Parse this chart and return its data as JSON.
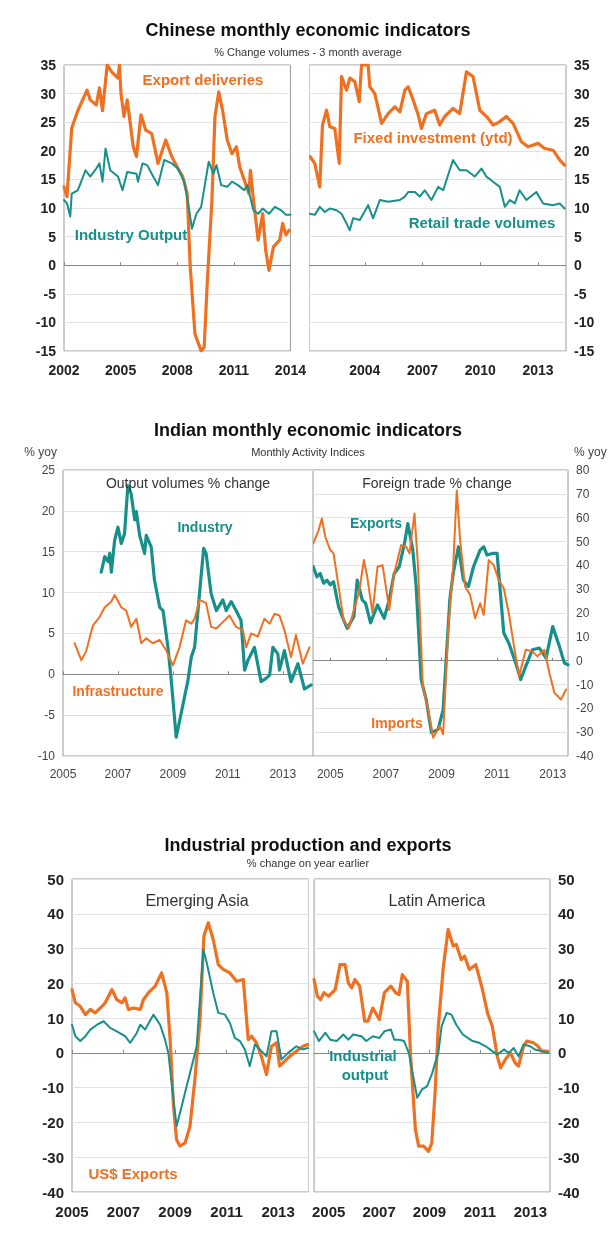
{
  "chart_data": [
    {
      "type": "line",
      "title": "Chinese monthly economic indicators",
      "subtitle": "% Change volumes - 3 month average",
      "xlim": [
        2002,
        2014
      ],
      "xticks": [
        2002,
        2005,
        2008,
        2011,
        2014
      ],
      "ylim": [
        -15,
        35
      ],
      "yticks": [
        -15,
        -10,
        -5,
        0,
        5,
        10,
        15,
        20,
        25,
        30,
        35
      ],
      "grid": "y",
      "series": [
        {
          "name": "Export deliveries",
          "color": "#f07021",
          "x": [
            2002.0,
            2002.16,
            2002.41,
            2002.73,
            2003.22,
            2003.39,
            2003.71,
            2003.88,
            2004.04,
            2004.29,
            2004.53,
            2004.86,
            2004.94,
            2005.02,
            2005.18,
            2005.35,
            2005.67,
            2005.84,
            2006.08,
            2006.33,
            2006.65,
            2006.98,
            2007.39,
            2007.71,
            2008.04,
            2008.29,
            2008.53,
            2008.69,
            2008.94,
            2009.27,
            2009.43,
            2009.59,
            2009.84,
            2010.0,
            2010.2,
            2010.41,
            2010.65,
            2010.9,
            2011.14,
            2011.31,
            2011.55,
            2011.8,
            2011.88,
            2012.04,
            2012.29,
            2012.53,
            2012.69,
            2012.86,
            2013.1,
            2013.43,
            2013.59,
            2013.76,
            2013.92
          ],
          "values": [
            13.7,
            12,
            24,
            27,
            30.6,
            28.9,
            28,
            31,
            27,
            35,
            33.8,
            32.7,
            35,
            30,
            26,
            28.9,
            20.7,
            19,
            26.3,
            23.6,
            23,
            17.8,
            21.9,
            19,
            16.9,
            15.5,
            12.5,
            -0.3,
            -12,
            -15,
            -14.3,
            -3.2,
            11.4,
            26,
            30.3,
            27,
            21.9,
            19.5,
            20.7,
            17.2,
            14.9,
            12.5,
            16.6,
            11.4,
            4.4,
            9,
            2.6,
            -0.9,
            3.2,
            4.4,
            7.3,
            5.3,
            6.1
          ]
        },
        {
          "name": "Industry Output",
          "color": "#17908c",
          "x": [
            2002.0,
            2002.16,
            2002.33,
            2002.41,
            2002.73,
            2003.14,
            2003.39,
            2003.71,
            2003.88,
            2004.04,
            2004.2,
            2004.45,
            2004.86,
            2005.1,
            2005.35,
            2005.84,
            2005.92,
            2006.16,
            2006.41,
            2006.65,
            2006.98,
            2007.31,
            2007.71,
            2008.04,
            2008.37,
            2008.61,
            2008.78,
            2009.02,
            2009.27,
            2009.67,
            2009.92,
            2010.08,
            2010.33,
            2010.65,
            2010.9,
            2011.22,
            2011.55,
            2011.71,
            2012.04,
            2012.29,
            2012.53,
            2012.86,
            2013.18,
            2013.51,
            2013.76,
            2014.0
          ],
          "values": [
            11.4,
            10.8,
            8.5,
            12.5,
            13.1,
            16.6,
            15.5,
            16.9,
            17.8,
            14.6,
            20.4,
            16.6,
            15.5,
            13.1,
            16.3,
            16,
            14.6,
            17.8,
            17.5,
            16,
            14,
            18.4,
            17.8,
            16.9,
            14.6,
            10.2,
            6.4,
            9,
            10.2,
            18.1,
            16,
            17.5,
            14,
            13.7,
            14.6,
            14,
            13.1,
            14,
            9.6,
            9,
            9.9,
            9,
            10.2,
            9.6,
            8.8,
            8.8
          ]
        }
      ]
    },
    {
      "type": "line",
      "xlim": [
        2001.1,
        2014.45
      ],
      "xticks": [
        2004,
        2007,
        2010,
        2013
      ],
      "ylim": [
        -15,
        35
      ],
      "yticks": [
        -15,
        -10,
        -5,
        0,
        5,
        10,
        15,
        20,
        25,
        30,
        35
      ],
      "grid": "y",
      "series": [
        {
          "name": "Fixed investment (ytd)",
          "color": "#f07021",
          "x": [
            2001.15,
            2001.4,
            2001.66,
            2001.8,
            2002.01,
            2002.18,
            2002.44,
            2002.67,
            2002.79,
            2003.05,
            2003.22,
            2003.48,
            2003.71,
            2003.83,
            2004.17,
            2004.26,
            2004.52,
            2004.87,
            2005.21,
            2005.56,
            2005.82,
            2006.08,
            2006.25,
            2006.51,
            2006.77,
            2006.94,
            2007.2,
            2007.63,
            2007.89,
            2008.15,
            2008.58,
            2008.93,
            2009.28,
            2009.62,
            2009.97,
            2010.4,
            2010.66,
            2011.01,
            2011.35,
            2011.7,
            2012.13,
            2012.48,
            2013.0,
            2013.34,
            2013.78,
            2014.12,
            2014.38
          ],
          "values": [
            19,
            17.8,
            13.7,
            24.5,
            27.1,
            24.2,
            23.9,
            17.8,
            33,
            30.6,
            32.7,
            32.1,
            28.6,
            35,
            35,
            31.2,
            30,
            24.8,
            26.5,
            27.7,
            26.8,
            30.6,
            31.2,
            28.9,
            26.3,
            23.9,
            26.5,
            27.1,
            24.5,
            26,
            27.4,
            26.5,
            33.8,
            33,
            27.1,
            25.7,
            24.5,
            25.1,
            26,
            24.8,
            21.6,
            20.7,
            21.3,
            20.4,
            20.1,
            18.4,
            17.5
          ]
        },
        {
          "name": "Retail trade volumes",
          "color": "#17908c",
          "x": [
            2001.15,
            2001.4,
            2001.66,
            2001.92,
            2002.18,
            2002.53,
            2002.79,
            2003.05,
            2003.22,
            2003.39,
            2003.74,
            2004.17,
            2004.43,
            2004.78,
            2005.21,
            2005.82,
            2006.08,
            2006.25,
            2006.6,
            2006.85,
            2007.11,
            2007.46,
            2007.81,
            2008.07,
            2008.58,
            2008.93,
            2009.28,
            2009.71,
            2010.06,
            2010.31,
            2010.66,
            2011.01,
            2011.27,
            2011.53,
            2011.79,
            2012.04,
            2012.39,
            2012.91,
            2013.26,
            2013.78,
            2014.12,
            2014.38
          ],
          "values": [
            9,
            8.8,
            10.2,
            9.3,
            9.9,
            9.6,
            9,
            7.3,
            6.1,
            8.2,
            7.9,
            10.5,
            8.2,
            11.4,
            11.1,
            11.4,
            12,
            12.8,
            12.8,
            12,
            13.1,
            11.4,
            13.7,
            13.1,
            18.4,
            16.6,
            16.6,
            15.5,
            16.9,
            15.5,
            14.6,
            13.7,
            10.2,
            11.4,
            10.8,
            13.1,
            11.4,
            12.8,
            10.8,
            10.5,
            10.8,
            9.9
          ]
        }
      ]
    },
    {
      "type": "line",
      "title": "Indian monthly economic indicators",
      "subtitle": "Monthly Activity Indices",
      "ylabel": "% yoy",
      "annotations": [
        "Output volumes % change"
      ],
      "xlim": [
        2005,
        2014.1
      ],
      "xticks": [
        2005,
        2007,
        2009,
        2011,
        2013
      ],
      "ylim": [
        -10,
        25
      ],
      "yticks": [
        -10,
        -5,
        0,
        5,
        10,
        15,
        20,
        25
      ],
      "grid": "y",
      "series": [
        {
          "name": "Industry",
          "color": "#17908c",
          "x": [
            2006.39,
            2006.52,
            2006.64,
            2006.7,
            2006.76,
            2006.88,
            2007.0,
            2007.12,
            2007.24,
            2007.36,
            2007.48,
            2007.61,
            2007.67,
            2007.79,
            2007.97,
            2008.03,
            2008.21,
            2008.33,
            2008.52,
            2008.64,
            2008.82,
            2008.94,
            2009.12,
            2009.3,
            2009.55,
            2009.67,
            2009.79,
            2009.97,
            2010.12,
            2010.21,
            2010.39,
            2010.58,
            2010.82,
            2010.94,
            2011.12,
            2011.3,
            2011.48,
            2011.61,
            2011.73,
            2011.97,
            2012.21,
            2012.39,
            2012.52,
            2012.64,
            2012.82,
            2012.88,
            2013.06,
            2013.3,
            2013.55,
            2013.79,
            2014.03
          ],
          "values": [
            12.5,
            14.4,
            13.8,
            14.8,
            12.5,
            16.4,
            18,
            16,
            17.2,
            23.1,
            22.1,
            18.9,
            19.9,
            17,
            14.8,
            17,
            15.6,
            11.5,
            8.2,
            7.8,
            3.3,
            -0.7,
            -7.7,
            -4.8,
            -0.7,
            2.1,
            3.3,
            9.9,
            15.4,
            14.8,
            9.9,
            7.8,
            9.1,
            7.8,
            8.9,
            7.8,
            6.6,
            0.5,
            1.7,
            3.3,
            -0.9,
            -0.5,
            -0.1,
            3.3,
            2.5,
            0.5,
            2.9,
            -0.9,
            1.3,
            -1.8,
            -1.3
          ]
        },
        {
          "name": "Infrastructure",
          "color": "#f07021",
          "x": [
            2005.42,
            2005.67,
            2005.85,
            2006.09,
            2006.33,
            2006.52,
            2006.76,
            2006.88,
            2007.12,
            2007.3,
            2007.48,
            2007.67,
            2007.85,
            2008.03,
            2008.27,
            2008.52,
            2008.76,
            2009.0,
            2009.24,
            2009.48,
            2009.67,
            2009.79,
            2009.97,
            2010.21,
            2010.39,
            2010.58,
            2010.76,
            2011.06,
            2011.3,
            2011.55,
            2011.67,
            2011.85,
            2012.09,
            2012.33,
            2012.52,
            2012.7,
            2012.88,
            2013.06,
            2013.3,
            2013.48,
            2013.73,
            2013.97
          ],
          "values": [
            3.8,
            1.7,
            2.9,
            6,
            7,
            8.2,
            8.9,
            9.7,
            8.2,
            7.8,
            5.8,
            6.8,
            3.8,
            4.4,
            3.8,
            4.2,
            2.9,
            1.1,
            3.3,
            6.6,
            6.2,
            6.8,
            9.1,
            8.7,
            5.8,
            5.6,
            6.2,
            7.2,
            5.8,
            5.4,
            3.3,
            5,
            4.6,
            6.8,
            6.2,
            7.4,
            7.2,
            5.4,
            2.1,
            4.8,
            1.3,
            3.3
          ]
        }
      ]
    },
    {
      "type": "line",
      "ylabel": "% yoy",
      "annotations": [
        "Foreign trade % change"
      ],
      "xlim": [
        2004.38,
        2013.55
      ],
      "xticks": [
        2005,
        2007,
        2009,
        2011,
        2013
      ],
      "ylim": [
        -40,
        80
      ],
      "yticks": [
        -40,
        -30,
        -20,
        -10,
        0,
        10,
        20,
        30,
        40,
        50,
        60,
        70,
        80
      ],
      "grid": "y",
      "series": [
        {
          "name": "Exports",
          "color": "#17908c",
          "x": [
            2004.39,
            2004.52,
            2004.64,
            2004.76,
            2004.88,
            2005.0,
            2005.12,
            2005.3,
            2005.48,
            2005.61,
            2005.85,
            2005.97,
            2006.15,
            2006.27,
            2006.45,
            2006.7,
            2006.94,
            2007.12,
            2007.3,
            2007.48,
            2007.67,
            2007.79,
            2007.97,
            2008.09,
            2008.27,
            2008.45,
            2008.64,
            2008.88,
            2009.06,
            2009.3,
            2009.42,
            2009.61,
            2009.79,
            2009.97,
            2010.15,
            2010.39,
            2010.52,
            2010.64,
            2010.82,
            2011.0,
            2011.12,
            2011.24,
            2011.42,
            2011.67,
            2011.85,
            2012.03,
            2012.27,
            2012.52,
            2012.76,
            2013.0,
            2013.24,
            2013.42,
            2013.55
          ],
          "values": [
            39.4,
            35.2,
            36.6,
            32.5,
            33.8,
            31.8,
            33.1,
            22.7,
            17.1,
            13.6,
            18.5,
            33.8,
            25.5,
            24.1,
            15.9,
            23.4,
            17.8,
            25.5,
            36.6,
            39.4,
            49.2,
            57.5,
            46.4,
            31.1,
            -7.9,
            -16.3,
            -30.2,
            -28.8,
            -20.5,
            25.5,
            36.6,
            47.8,
            33.8,
            31.1,
            39.4,
            46.4,
            47.8,
            44.3,
            45,
            45,
            28.3,
            11.6,
            7.4,
            -1,
            -7.9,
            -2.4,
            4.6,
            5.3,
            1.1,
            14.3,
            6,
            -1,
            -1.7
          ]
        },
        {
          "name": "Imports",
          "color": "#f07021",
          "x": [
            2004.39,
            2004.58,
            2004.7,
            2004.82,
            2005.0,
            2005.12,
            2005.3,
            2005.48,
            2005.67,
            2005.85,
            2006.03,
            2006.21,
            2006.33,
            2006.52,
            2006.7,
            2006.88,
            2007.0,
            2007.12,
            2007.3,
            2007.55,
            2007.73,
            2007.85,
            2008.03,
            2008.15,
            2008.33,
            2008.52,
            2008.7,
            2008.94,
            2009.06,
            2009.24,
            2009.42,
            2009.55,
            2009.67,
            2009.85,
            2010.03,
            2010.21,
            2010.39,
            2010.52,
            2010.7,
            2010.88,
            2011.06,
            2011.24,
            2011.42,
            2011.61,
            2011.79,
            2012.03,
            2012.27,
            2012.45,
            2012.7,
            2012.88,
            2013.06,
            2013.3,
            2013.48
          ],
          "values": [
            49.2,
            54.7,
            59.6,
            52,
            46.4,
            45,
            31.1,
            17.1,
            13.6,
            21.3,
            28.3,
            42.2,
            35.2,
            20,
            39.4,
            40.1,
            31.1,
            21.3,
            36.6,
            48.5,
            47.8,
            45,
            61.7,
            40.8,
            -10.7,
            -20.5,
            -32.3,
            -27.4,
            -30.9,
            13,
            39.4,
            71.4,
            50.6,
            31.1,
            27.6,
            17.8,
            24.1,
            19.2,
            42.2,
            40.1,
            33.8,
            30.4,
            19.9,
            6,
            -6.5,
            4.6,
            3.9,
            1.8,
            4.6,
            -5.2,
            -13.5,
            -16.3,
            -12.1
          ]
        }
      ]
    },
    {
      "type": "line",
      "title": "Industrial production and exports",
      "subtitle": "% change on year earlier",
      "annotations": [
        "Emerging Asia"
      ],
      "xlim": [
        2005,
        2014.2
      ],
      "xticks": [
        2005,
        2007,
        2009,
        2011,
        2013
      ],
      "ylim": [
        -40,
        50
      ],
      "yticks": [
        -40,
        -30,
        -20,
        -10,
        0,
        10,
        20,
        30,
        40,
        50
      ],
      "grid": "y",
      "series": [
        {
          "name": "US$ Exports",
          "color": "#f07021",
          "x": [
            2005.0,
            2005.13,
            2005.32,
            2005.52,
            2005.71,
            2005.9,
            2006.1,
            2006.29,
            2006.55,
            2006.74,
            2006.94,
            2007.06,
            2007.19,
            2007.39,
            2007.65,
            2007.77,
            2007.97,
            2008.23,
            2008.48,
            2008.68,
            2008.81,
            2008.94,
            2009.06,
            2009.19,
            2009.39,
            2009.58,
            2009.77,
            2009.97,
            2010.12,
            2010.29,
            2010.48,
            2010.68,
            2010.87,
            2011.13,
            2011.39,
            2011.65,
            2011.84,
            2011.97,
            2012.16,
            2012.35,
            2012.55,
            2012.74,
            2012.94,
            2013.06,
            2013.26,
            2013.45,
            2013.71,
            2013.97,
            2014.16
          ],
          "values": [
            18.2,
            14.4,
            13.4,
            11,
            12.5,
            11.5,
            12.9,
            14.4,
            18.2,
            15.3,
            14.4,
            15.8,
            12.5,
            12.9,
            12.5,
            15.3,
            17.3,
            19.2,
            23,
            17.3,
            3.8,
            -15.3,
            -24.9,
            -26.8,
            -25.9,
            -21.1,
            -7.7,
            9.6,
            33.6,
            37.4,
            32.6,
            25.4,
            24,
            23,
            20.6,
            21.1,
            3.8,
            4.8,
            2.9,
            -1,
            -6.2,
            1.9,
            2.9,
            -3.8,
            -2.4,
            -1,
            0.5,
            1.9,
            2.4
          ]
        },
        {
          "color": "#17908c",
          "x": [
            2005.0,
            2005.13,
            2005.32,
            2005.52,
            2005.71,
            2005.97,
            2006.23,
            2006.48,
            2006.74,
            2007.06,
            2007.26,
            2007.52,
            2007.65,
            2007.84,
            2008.16,
            2008.42,
            2008.61,
            2008.74,
            2008.94,
            2009.06,
            2009.26,
            2009.45,
            2009.65,
            2009.84,
            2010.1,
            2010.23,
            2010.48,
            2010.68,
            2010.94,
            2011.13,
            2011.32,
            2011.52,
            2011.71,
            2011.9,
            2012.1,
            2012.29,
            2012.55,
            2012.74,
            2012.94,
            2013.13,
            2013.39,
            2013.71,
            2013.97,
            2014.16
          ],
          "values": [
            8.1,
            4.8,
            3.4,
            4.8,
            6.7,
            8.1,
            9.1,
            7.2,
            6.2,
            4.8,
            2.9,
            5.8,
            8.1,
            6.7,
            11,
            8.1,
            3.8,
            0,
            -13.4,
            -21.1,
            -15.3,
            -9.6,
            -3.8,
            1.9,
            29.7,
            25.9,
            17.3,
            11.5,
            11,
            8.6,
            4.3,
            3.4,
            1,
            -3.8,
            2.4,
            1,
            -1,
            6.2,
            6.2,
            -1.9,
            0,
            1.9,
            1,
            1.4
          ]
        }
      ]
    },
    {
      "type": "line",
      "annotations": [
        "Latin America"
      ],
      "xlim": [
        2004.42,
        2013.78
      ],
      "xticks": [
        2005,
        2007,
        2009,
        2011,
        2013
      ],
      "ylim": [
        -40,
        50
      ],
      "yticks": [
        -40,
        -30,
        -20,
        -10,
        0,
        10,
        20,
        30,
        40,
        50
      ],
      "grid": "y",
      "series": [
        {
          "color": "#f07021",
          "x": [
            2004.42,
            2004.55,
            2004.68,
            2004.81,
            2005.0,
            2005.26,
            2005.45,
            2005.65,
            2005.78,
            2005.91,
            2006.04,
            2006.23,
            2006.43,
            2006.56,
            2006.75,
            2007.01,
            2007.21,
            2007.47,
            2007.66,
            2007.79,
            2007.92,
            2008.12,
            2008.25,
            2008.44,
            2008.57,
            2008.77,
            2008.96,
            2009.09,
            2009.22,
            2009.35,
            2009.55,
            2009.74,
            2009.94,
            2010.06,
            2010.26,
            2010.39,
            2010.58,
            2010.84,
            2011.1,
            2011.3,
            2011.49,
            2011.69,
            2011.82,
            2012.01,
            2012.21,
            2012.4,
            2012.53,
            2012.73,
            2012.86,
            2013.12,
            2013.31,
            2013.44,
            2013.7
          ],
          "values": [
            21.1,
            16.3,
            15.3,
            17.3,
            16.3,
            18.2,
            25.4,
            25.4,
            20.1,
            18.7,
            21.1,
            19.2,
            9.1,
            9.1,
            12.9,
            9.6,
            17.3,
            19.2,
            17.3,
            16.8,
            22.5,
            20.6,
            -1,
            -22,
            -26.8,
            -26.8,
            -28.3,
            -25.9,
            -11.5,
            7.7,
            24.9,
            35.5,
            30.7,
            31.2,
            26.8,
            27.8,
            24,
            25.4,
            18.2,
            11.5,
            7.7,
            -1,
            -4.3,
            -1.9,
            0,
            -2.9,
            -3.8,
            1.9,
            3.4,
            2.9,
            1.9,
            0.5,
            0.5
          ]
        },
        {
          "name": "Industrial output",
          "color": "#17908c",
          "x": [
            2004.42,
            2004.61,
            2004.87,
            2005.06,
            2005.32,
            2005.58,
            2005.78,
            2005.97,
            2006.3,
            2006.49,
            2006.75,
            2007.01,
            2007.21,
            2007.47,
            2007.6,
            2007.79,
            2007.99,
            2008.18,
            2008.51,
            2008.7,
            2008.9,
            2009.09,
            2009.22,
            2009.35,
            2009.48,
            2009.68,
            2009.87,
            2010.06,
            2010.32,
            2010.52,
            2010.71,
            2010.97,
            2011.23,
            2011.49,
            2011.69,
            2011.95,
            2012.14,
            2012.34,
            2012.53,
            2012.73,
            2012.99,
            2013.18,
            2013.44,
            2013.7
          ],
          "values": [
            6.2,
            3.4,
            5.8,
            3.8,
            3.4,
            5.3,
            3.8,
            5.3,
            4.8,
            3.4,
            4.8,
            4.3,
            6.2,
            6.7,
            3.8,
            3.8,
            3.4,
            0,
            -12.9,
            -10.5,
            -9.6,
            -6.2,
            -2.9,
            0,
            7.7,
            11.5,
            11,
            8.1,
            5.3,
            4.3,
            3.4,
            2.9,
            1.9,
            0.5,
            -0.5,
            1,
            0,
            1.4,
            -1,
            2.4,
            1.9,
            1,
            0.5,
            0
          ]
        }
      ]
    }
  ]
}
